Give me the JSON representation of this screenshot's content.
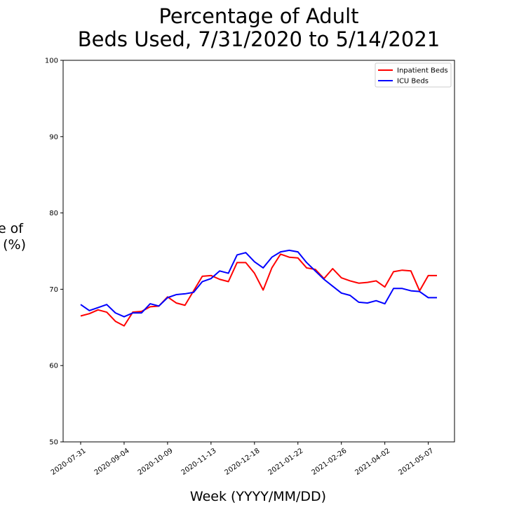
{
  "chart_data": {
    "type": "line",
    "title_lines": [
      "Percentage of Adult",
      "Beds Used, 7/31/2020 to 5/14/2021"
    ],
    "xlabel": "Week (YYYY/MM/DD)",
    "ylabel_lines": [
      "Percentage of",
      "Beds Used (%)"
    ],
    "ylabel_visible_lines": [
      "e of",
      "(%)"
    ],
    "ylim": [
      50,
      100
    ],
    "yticks": [
      50,
      60,
      70,
      80,
      90,
      100
    ],
    "x_dates": [
      "2020-07-31",
      "2020-08-07",
      "2020-08-14",
      "2020-08-21",
      "2020-08-28",
      "2020-09-04",
      "2020-09-11",
      "2020-09-18",
      "2020-09-25",
      "2020-10-02",
      "2020-10-09",
      "2020-10-16",
      "2020-10-23",
      "2020-10-30",
      "2020-11-06",
      "2020-11-13",
      "2020-11-20",
      "2020-11-27",
      "2020-12-04",
      "2020-12-11",
      "2020-12-18",
      "2020-12-25",
      "2021-01-01",
      "2021-01-08",
      "2021-01-15",
      "2021-01-22",
      "2021-01-29",
      "2021-02-05",
      "2021-02-12",
      "2021-02-19",
      "2021-02-26",
      "2021-03-05",
      "2021-03-12",
      "2021-03-19",
      "2021-03-26",
      "2021-04-02",
      "2021-04-09",
      "2021-04-16",
      "2021-04-23",
      "2021-04-30",
      "2021-05-07",
      "2021-05-14"
    ],
    "xticks": [
      "2020-07-31",
      "2020-09-04",
      "2020-10-09",
      "2020-11-13",
      "2020-12-18",
      "2021-01-22",
      "2021-02-26",
      "2021-04-02",
      "2021-05-07"
    ],
    "series": [
      {
        "name": "Inpatient Beds",
        "color": "#ff0000",
        "values": [
          66.5,
          66.8,
          67.3,
          67.0,
          65.8,
          65.2,
          67.0,
          67.1,
          67.7,
          67.8,
          69.0,
          68.2,
          67.9,
          69.8,
          71.7,
          71.8,
          71.3,
          71.0,
          73.5,
          73.5,
          72.1,
          69.9,
          72.8,
          74.6,
          74.2,
          74.1,
          72.8,
          72.6,
          71.4,
          72.7,
          71.5,
          71.1,
          70.8,
          70.9,
          71.1,
          70.3,
          72.3,
          72.5,
          72.4,
          69.8,
          71.8,
          71.8
        ]
      },
      {
        "name": "ICU Beds",
        "color": "#0000ff",
        "values": [
          68.0,
          67.2,
          67.6,
          68.0,
          66.9,
          66.4,
          66.9,
          66.9,
          68.1,
          67.8,
          68.9,
          69.3,
          69.4,
          69.6,
          71.0,
          71.4,
          72.4,
          72.1,
          74.5,
          74.8,
          73.6,
          72.8,
          74.2,
          74.9,
          75.1,
          74.9,
          73.5,
          72.4,
          71.3,
          70.4,
          69.5,
          69.2,
          68.3,
          68.2,
          68.5,
          68.1,
          70.1,
          70.1,
          69.8,
          69.7,
          68.9,
          68.9
        ]
      }
    ],
    "legend_position": "top-right",
    "grid": false
  }
}
